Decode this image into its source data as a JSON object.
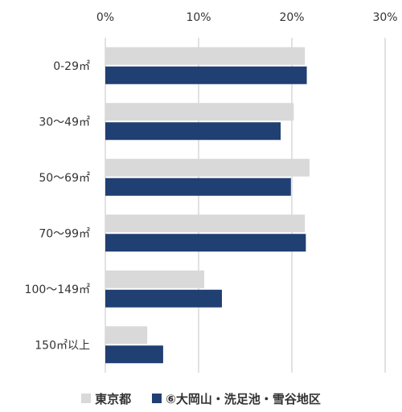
{
  "chart_data": {
    "type": "bar",
    "orientation": "horizontal",
    "categories": [
      "0-29㎡",
      "30～49㎡",
      "50～69㎡",
      "70～99㎡",
      "100～149㎡",
      "150㎡以上"
    ],
    "series": [
      {
        "name": "東京都",
        "color": "#d9d9d9",
        "values": [
          21.4,
          20.2,
          21.9,
          21.4,
          10.6,
          4.5
        ]
      },
      {
        "name": "⑥大岡山・洗足池・雪谷地区",
        "color": "#203f72",
        "values": [
          21.6,
          18.8,
          19.9,
          21.5,
          12.5,
          6.2
        ]
      }
    ],
    "xlim": [
      0,
      30
    ],
    "xticks": [
      "0%",
      "10%",
      "20%",
      "30%"
    ],
    "xtick_values": [
      0,
      10,
      20,
      30
    ],
    "unit": "%",
    "grid": true,
    "gridline_color": "#d9d9d9",
    "legend_position": "bottom",
    "title": "",
    "xlabel": "",
    "ylabel": ""
  }
}
